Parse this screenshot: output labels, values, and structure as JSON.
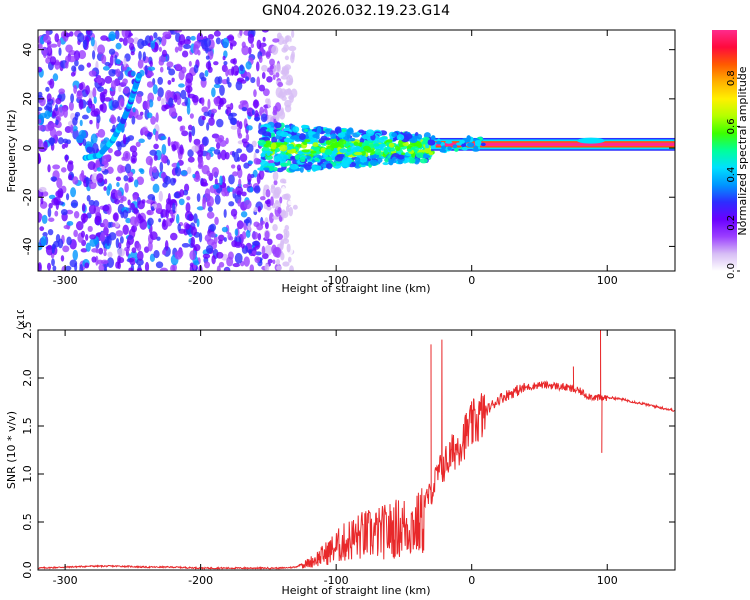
{
  "title": "GN04.2026.032.19.23.G14",
  "colors": {
    "line": "#e8282a",
    "axis": "#000000",
    "colorbar": [
      "#ffffff",
      "#d7bdf5",
      "#9b3fff",
      "#6a00ff",
      "#2d2dff",
      "#0096ff",
      "#00e0ff",
      "#00ff9a",
      "#3cff00",
      "#b4ff00",
      "#fff000",
      "#ffb000",
      "#ff5a00",
      "#ff0a3c",
      "#ff2b8c"
    ]
  },
  "chart_data": [
    {
      "type": "heatmap",
      "title": "GN04.2026.032.19.23.G14",
      "xlabel": "Height of straight line (km)",
      "ylabel": "Frequency (Hz)",
      "xlim": [
        -320,
        150
      ],
      "ylim": [
        -50,
        48
      ],
      "xticks": [
        -300,
        -200,
        -100,
        0,
        100
      ],
      "yticks": [
        -40,
        -20,
        0,
        20,
        40
      ],
      "colorbar": {
        "label": "Normalized spectral amplitude",
        "range": [
          0,
          1
        ],
        "ticks": [
          "0.0",
          "0.2",
          "0.4",
          "0.6",
          "0.8"
        ]
      },
      "features": [
        {
          "name": "noise-region",
          "x_range": [
            -320,
            -130
          ],
          "y_range": [
            -50,
            48
          ]
        },
        {
          "name": "rising-arc",
          "points": [
            [
              -285,
              -4
            ],
            [
              -275,
              -3
            ],
            [
              -265,
              3
            ],
            [
              -258,
              10
            ],
            [
              -252,
              18
            ],
            [
              -248,
              25
            ],
            [
              -245,
              30
            ]
          ]
        },
        {
          "name": "converging-band",
          "x_range": [
            -155,
            -30
          ],
          "center": 0,
          "half_width": [
            10,
            5
          ]
        },
        {
          "name": "stable-line",
          "x_range": [
            -30,
            150
          ],
          "center": 1.5,
          "half_width": 1.5
        }
      ]
    },
    {
      "type": "line",
      "xlabel": "Height of straight line (km)",
      "ylabel": "SNR (10 * v/v)",
      "y_multiplier": "(x10",
      "y_multiplier_exp": "4",
      "xlim": [
        -320,
        150
      ],
      "ylim": [
        0,
        2.5
      ],
      "xticks": [
        -300,
        -200,
        -100,
        0,
        100
      ],
      "yticks": [
        "0.0",
        "0.5",
        "1.0",
        "1.5",
        "2.0",
        "2.5"
      ],
      "series": [
        {
          "x": [
            -320,
            -300,
            -280,
            -260,
            -240,
            -220,
            -200,
            -180,
            -160,
            -140,
            -130,
            -120,
            -110,
            -100,
            -90,
            -80,
            -70,
            -60,
            -50,
            -40,
            -30,
            -25,
            -20,
            -15,
            -10,
            -5,
            0,
            10,
            20,
            30,
            40,
            50,
            60,
            70,
            75,
            80,
            85,
            90,
            95,
            100,
            110,
            120,
            130,
            140,
            150
          ],
          "y": [
            0.02,
            0.03,
            0.04,
            0.04,
            0.03,
            0.03,
            0.02,
            0.02,
            0.02,
            0.02,
            0.03,
            0.1,
            0.2,
            0.32,
            0.42,
            0.48,
            0.5,
            0.55,
            0.6,
            0.62,
            0.8,
            1.0,
            1.1,
            1.2,
            1.3,
            1.4,
            1.5,
            1.65,
            1.78,
            1.85,
            1.9,
            1.93,
            1.92,
            1.9,
            1.88,
            1.86,
            1.82,
            1.8,
            1.79,
            1.8,
            1.78,
            1.75,
            1.72,
            1.69,
            1.66
          ]
        }
      ],
      "spikes": [
        [
          -22,
          2.4
        ],
        [
          -30,
          2.35
        ],
        [
          75,
          2.12
        ],
        [
          95,
          2.52
        ],
        [
          96,
          1.22
        ]
      ]
    }
  ]
}
